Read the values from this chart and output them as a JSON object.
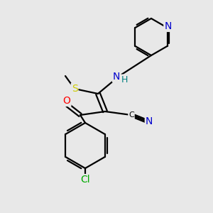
{
  "bg_color": "#e8e8e8",
  "atom_colors": {
    "N": "#0000cd",
    "O": "#ff0000",
    "S": "#cccc00",
    "Cl": "#00aa00",
    "C": "#000000",
    "H": "#008080"
  },
  "bond_lw": 1.6,
  "font_size": 9.5
}
